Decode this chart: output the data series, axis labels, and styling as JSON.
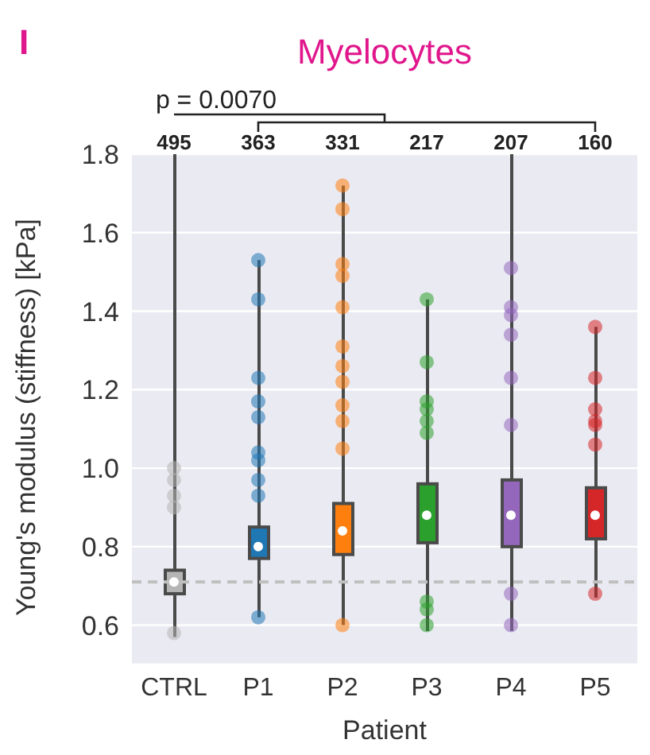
{
  "chart_data": {
    "type": "box",
    "title": "Myelocytes",
    "xlabel": "Patient",
    "ylabel": "Young's modulus (stiffness) [kPa]",
    "categories": [
      "CTRL",
      "P1",
      "P2",
      "P3",
      "P4",
      "P5"
    ],
    "colors": [
      "#b5b5b5",
      "#1f77b4",
      "#ff7f0e",
      "#2ca02c",
      "#9467bd",
      "#d62728"
    ],
    "boxes": [
      {
        "low": 0.57,
        "q1": 0.68,
        "median": 0.71,
        "q3": 0.74,
        "high": 1.8,
        "outliers": [
          1.0,
          0.97,
          0.93,
          0.9,
          0.58
        ]
      },
      {
        "low": 0.62,
        "q1": 0.77,
        "median": 0.8,
        "q3": 0.85,
        "high": 1.53,
        "outliers": [
          1.53,
          1.43,
          1.23,
          1.17,
          1.13,
          1.04,
          1.02,
          0.97,
          0.93,
          0.62
        ]
      },
      {
        "low": 0.6,
        "q1": 0.78,
        "median": 0.84,
        "q3": 0.91,
        "high": 1.72,
        "outliers": [
          1.72,
          1.66,
          1.52,
          1.49,
          1.41,
          1.31,
          1.26,
          1.22,
          1.16,
          1.12,
          1.05,
          0.6
        ]
      },
      {
        "low": 0.585,
        "q1": 0.81,
        "median": 0.88,
        "q3": 0.96,
        "high": 1.43,
        "outliers": [
          1.43,
          1.27,
          1.17,
          1.15,
          1.12,
          1.09,
          0.66,
          0.64,
          0.6
        ]
      },
      {
        "low": 0.585,
        "q1": 0.8,
        "median": 0.88,
        "q3": 0.97,
        "high": 1.8,
        "outliers": [
          1.51,
          1.41,
          1.39,
          1.34,
          1.23,
          1.11,
          0.68,
          0.6
        ]
      },
      {
        "low": 0.67,
        "q1": 0.82,
        "median": 0.88,
        "q3": 0.95,
        "high": 1.36,
        "outliers": [
          1.36,
          1.23,
          1.15,
          1.12,
          1.11,
          1.06,
          0.68
        ]
      }
    ],
    "ylim": [
      0.5,
      1.8
    ],
    "yticks": [
      0.6,
      0.8,
      {
        "value": 1,
        "label": "1.0"
      },
      1.2,
      1.4,
      1.6,
      1.8
    ],
    "grid": "y",
    "ref_lines": [
      {
        "axis": "y",
        "value": 0.71,
        "color": "#c0c0c0",
        "line_style": "dashed"
      }
    ],
    "annotations": [
      "I",
      "p = 0.0070",
      "495",
      "363",
      "331",
      "217",
      "207",
      "160"
    ],
    "legend": false
  }
}
